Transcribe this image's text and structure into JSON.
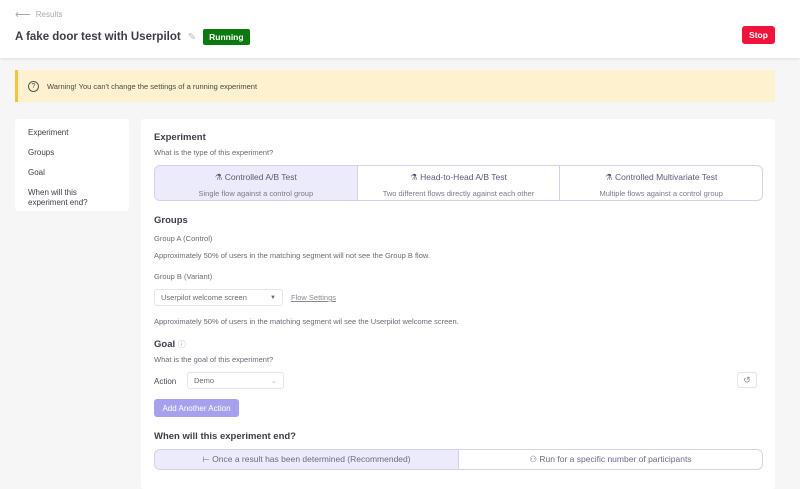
{
  "header": {
    "back_label": "Results",
    "title": "A fake door test with Userpilot",
    "status": "Running",
    "stop_label": "Stop"
  },
  "warning": "Warning! You can't change the settings of a running experiment",
  "sidebar": {
    "items": [
      {
        "label": "Experiment"
      },
      {
        "label": "Groups"
      },
      {
        "label": "Goal"
      },
      {
        "label": "When will this experiment end?"
      }
    ]
  },
  "experiment": {
    "heading": "Experiment",
    "question": "What is the type of this experiment?",
    "types": [
      {
        "label": "Controlled A/B Test",
        "desc": "Single flow against a control group",
        "selected": true
      },
      {
        "label": "Head-to-Head A/B Test",
        "desc": "Two different flows directly against each other",
        "selected": false
      },
      {
        "label": "Controlled Multivariate Test",
        "desc": "Multiple flows against a control group",
        "selected": false
      }
    ]
  },
  "groups": {
    "heading": "Groups",
    "group_a": "Group A (Control)",
    "group_a_desc": "Approximately 50% of users in the matching segment will not see the Group B flow.",
    "group_b": "Group B (Variant)",
    "flow_value": "Userpilot welcome screen",
    "flow_settings": "Flow Settings",
    "group_b_desc": "Approximately 50% of users in the matching segment wil see the Userpilot welcome screen."
  },
  "goal": {
    "heading": "Goal",
    "question": "What is the goal of this experiment?",
    "action_label": "Action",
    "action_value": "Demo",
    "add_label": "Add Another Action"
  },
  "end": {
    "heading": "When will this experiment end?",
    "options": [
      {
        "label": "Once a result has been determined (Recommended)",
        "selected": true
      },
      {
        "label": "Run for a specific number of participants",
        "selected": false
      }
    ]
  },
  "colors": {
    "accent": "#a6a0ee",
    "running": "#0a7a10",
    "stop": "#f0143c",
    "warning_bg": "#fdf1cf"
  }
}
